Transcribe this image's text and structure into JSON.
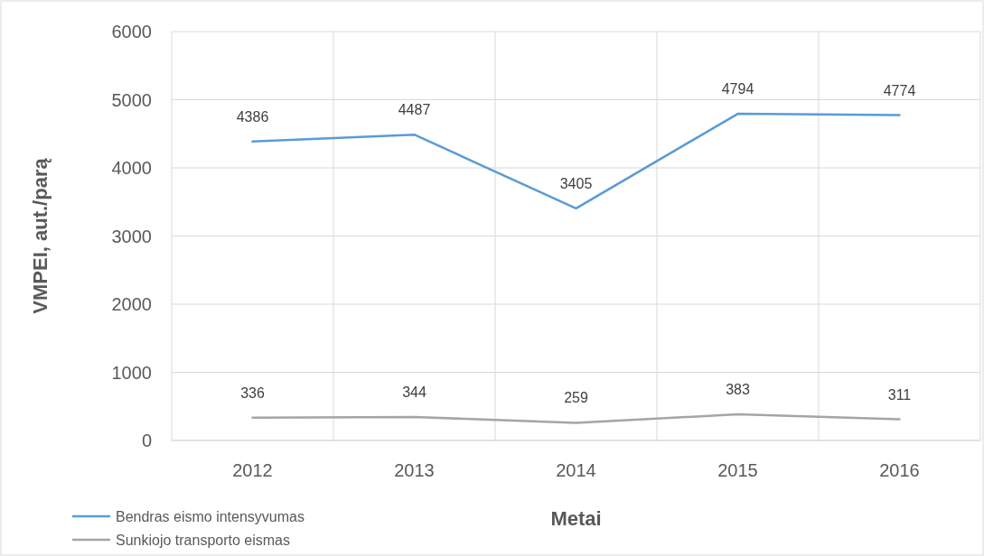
{
  "chart_data": {
    "type": "line",
    "xlabel": "Metai",
    "ylabel": "VMPEI, aut./parą",
    "categories": [
      "2012",
      "2013",
      "2014",
      "2015",
      "2016"
    ],
    "series": [
      {
        "name": "Bendras eismo intensyvumas",
        "color": "#5b9bd5",
        "values": [
          4386,
          4487,
          3405,
          4794,
          4774
        ]
      },
      {
        "name": "Sunkiojo transporto eismas",
        "color": "#a5a5a5",
        "values": [
          336,
          344,
          259,
          383,
          311
        ]
      }
    ],
    "ylim": [
      0,
      6000
    ],
    "yticks": [
      0,
      1000,
      2000,
      3000,
      4000,
      5000,
      6000
    ],
    "grid": true,
    "legend": "bottom left",
    "data_labels": true,
    "marker": "none",
    "line_style": "solid"
  }
}
